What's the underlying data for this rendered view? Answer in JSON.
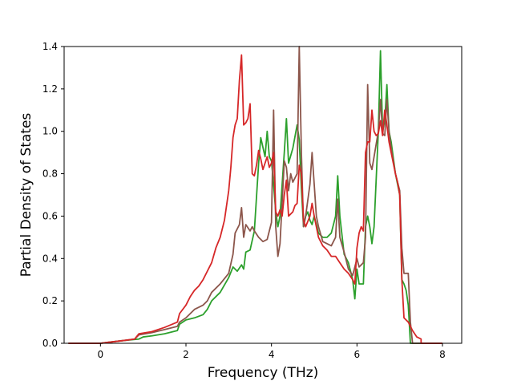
{
  "chart_data": {
    "type": "line",
    "title": "",
    "xlabel": "Frequency (THz)",
    "ylabel": "Partial Density of States",
    "xlim": [
      -0.85,
      8.45
    ],
    "ylim": [
      0.0,
      1.4
    ],
    "xticks": [
      0,
      2,
      4,
      6,
      8
    ],
    "yticks": [
      0.0,
      0.2,
      0.4,
      0.6,
      0.8,
      1.0,
      1.2,
      1.4
    ],
    "xtick_labels": [
      "0",
      "2",
      "4",
      "6",
      "8"
    ],
    "ytick_labels": [
      "0.0",
      "0.2",
      "0.4",
      "0.6",
      "0.8",
      "1.0",
      "1.2",
      "1.4"
    ],
    "grid": false,
    "legend": "none",
    "series": [
      {
        "color": "#2ca02c",
        "points": [
          [
            -0.75,
            0.0
          ],
          [
            0.0,
            0.0
          ],
          [
            0.2,
            0.005
          ],
          [
            0.5,
            0.012
          ],
          [
            0.8,
            0.018
          ],
          [
            0.9,
            0.02
          ],
          [
            1.0,
            0.03
          ],
          [
            1.2,
            0.035
          ],
          [
            1.5,
            0.045
          ],
          [
            1.8,
            0.06
          ],
          [
            1.85,
            0.09
          ],
          [
            2.0,
            0.11
          ],
          [
            2.2,
            0.12
          ],
          [
            2.4,
            0.135
          ],
          [
            2.5,
            0.16
          ],
          [
            2.6,
            0.2
          ],
          [
            2.8,
            0.24
          ],
          [
            3.0,
            0.31
          ],
          [
            3.1,
            0.36
          ],
          [
            3.2,
            0.34
          ],
          [
            3.3,
            0.37
          ],
          [
            3.35,
            0.35
          ],
          [
            3.4,
            0.43
          ],
          [
            3.5,
            0.44
          ],
          [
            3.6,
            0.53
          ],
          [
            3.7,
            0.85
          ],
          [
            3.75,
            0.97
          ],
          [
            3.85,
            0.88
          ],
          [
            3.9,
            1.0
          ],
          [
            3.95,
            0.88
          ],
          [
            4.0,
            0.86
          ],
          [
            4.05,
            0.75
          ],
          [
            4.1,
            0.62
          ],
          [
            4.15,
            0.55
          ],
          [
            4.2,
            0.6
          ],
          [
            4.25,
            0.75
          ],
          [
            4.3,
            0.9
          ],
          [
            4.35,
            1.06
          ],
          [
            4.4,
            0.85
          ],
          [
            4.5,
            0.92
          ],
          [
            4.6,
            1.03
          ],
          [
            4.65,
            0.96
          ],
          [
            4.7,
            0.73
          ],
          [
            4.75,
            0.55
          ],
          [
            4.8,
            0.6
          ],
          [
            4.85,
            0.62
          ],
          [
            4.9,
            0.58
          ],
          [
            4.95,
            0.56
          ],
          [
            5.0,
            0.6
          ],
          [
            5.1,
            0.52
          ],
          [
            5.2,
            0.5
          ],
          [
            5.3,
            0.5
          ],
          [
            5.4,
            0.52
          ],
          [
            5.5,
            0.6
          ],
          [
            5.55,
            0.79
          ],
          [
            5.6,
            0.6
          ],
          [
            5.7,
            0.42
          ],
          [
            5.8,
            0.38
          ],
          [
            5.9,
            0.3
          ],
          [
            5.95,
            0.21
          ],
          [
            6.0,
            0.35
          ],
          [
            6.05,
            0.28
          ],
          [
            6.15,
            0.28
          ],
          [
            6.2,
            0.55
          ],
          [
            6.25,
            0.6
          ],
          [
            6.3,
            0.55
          ],
          [
            6.35,
            0.47
          ],
          [
            6.4,
            0.55
          ],
          [
            6.5,
            1.0
          ],
          [
            6.55,
            1.38
          ],
          [
            6.6,
            1.0
          ],
          [
            6.65,
            1.05
          ],
          [
            6.7,
            1.22
          ],
          [
            6.75,
            1.0
          ],
          [
            6.8,
            0.95
          ],
          [
            6.9,
            0.8
          ],
          [
            7.0,
            0.7
          ],
          [
            7.05,
            0.3
          ],
          [
            7.1,
            0.28
          ],
          [
            7.15,
            0.25
          ],
          [
            7.2,
            0.18
          ],
          [
            7.25,
            0.0
          ],
          [
            8.0,
            0.0
          ]
        ]
      },
      {
        "color": "#8c564b",
        "points": [
          [
            -0.75,
            0.0
          ],
          [
            0.0,
            0.0
          ],
          [
            0.2,
            0.005
          ],
          [
            0.5,
            0.012
          ],
          [
            0.8,
            0.02
          ],
          [
            0.9,
            0.04
          ],
          [
            1.2,
            0.05
          ],
          [
            1.5,
            0.065
          ],
          [
            1.8,
            0.08
          ],
          [
            1.85,
            0.1
          ],
          [
            2.0,
            0.12
          ],
          [
            2.2,
            0.16
          ],
          [
            2.4,
            0.18
          ],
          [
            2.5,
            0.2
          ],
          [
            2.6,
            0.24
          ],
          [
            2.8,
            0.28
          ],
          [
            3.0,
            0.33
          ],
          [
            3.1,
            0.42
          ],
          [
            3.15,
            0.52
          ],
          [
            3.25,
            0.56
          ],
          [
            3.3,
            0.64
          ],
          [
            3.35,
            0.5
          ],
          [
            3.4,
            0.56
          ],
          [
            3.5,
            0.53
          ],
          [
            3.55,
            0.55
          ],
          [
            3.6,
            0.53
          ],
          [
            3.7,
            0.5
          ],
          [
            3.8,
            0.48
          ],
          [
            3.9,
            0.49
          ],
          [
            4.0,
            0.57
          ],
          [
            4.05,
            1.1
          ],
          [
            4.1,
            0.55
          ],
          [
            4.15,
            0.41
          ],
          [
            4.2,
            0.47
          ],
          [
            4.3,
            0.86
          ],
          [
            4.35,
            0.83
          ],
          [
            4.4,
            0.72
          ],
          [
            4.45,
            0.8
          ],
          [
            4.5,
            0.76
          ],
          [
            4.55,
            0.78
          ],
          [
            4.6,
            0.8
          ],
          [
            4.65,
            1.4
          ],
          [
            4.7,
            0.9
          ],
          [
            4.75,
            0.55
          ],
          [
            4.8,
            0.6
          ],
          [
            4.9,
            0.75
          ],
          [
            4.95,
            0.9
          ],
          [
            5.0,
            0.75
          ],
          [
            5.05,
            0.6
          ],
          [
            5.1,
            0.55
          ],
          [
            5.2,
            0.48
          ],
          [
            5.3,
            0.47
          ],
          [
            5.4,
            0.46
          ],
          [
            5.5,
            0.5
          ],
          [
            5.55,
            0.68
          ],
          [
            5.6,
            0.5
          ],
          [
            5.7,
            0.43
          ],
          [
            5.8,
            0.35
          ],
          [
            5.9,
            0.32
          ],
          [
            6.0,
            0.4
          ],
          [
            6.05,
            0.36
          ],
          [
            6.15,
            0.38
          ],
          [
            6.2,
            0.5
          ],
          [
            6.25,
            1.22
          ],
          [
            6.3,
            0.85
          ],
          [
            6.35,
            0.82
          ],
          [
            6.4,
            0.88
          ],
          [
            6.5,
            1.0
          ],
          [
            6.55,
            1.15
          ],
          [
            6.6,
            0.99
          ],
          [
            6.65,
            0.98
          ],
          [
            6.7,
            1.15
          ],
          [
            6.75,
            1.0
          ],
          [
            6.8,
            0.92
          ],
          [
            6.9,
            0.8
          ],
          [
            7.0,
            0.72
          ],
          [
            7.05,
            0.45
          ],
          [
            7.1,
            0.33
          ],
          [
            7.2,
            0.33
          ],
          [
            7.25,
            0.1
          ],
          [
            7.3,
            0.0
          ],
          [
            8.0,
            0.0
          ]
        ]
      },
      {
        "color": "#d62728",
        "points": [
          [
            -0.75,
            0.0
          ],
          [
            0.0,
            0.0
          ],
          [
            0.2,
            0.005
          ],
          [
            0.5,
            0.012
          ],
          [
            0.8,
            0.02
          ],
          [
            0.9,
            0.045
          ],
          [
            1.2,
            0.055
          ],
          [
            1.5,
            0.075
          ],
          [
            1.8,
            0.1
          ],
          [
            1.85,
            0.14
          ],
          [
            2.0,
            0.18
          ],
          [
            2.1,
            0.22
          ],
          [
            2.2,
            0.25
          ],
          [
            2.3,
            0.27
          ],
          [
            2.4,
            0.3
          ],
          [
            2.5,
            0.34
          ],
          [
            2.6,
            0.38
          ],
          [
            2.7,
            0.45
          ],
          [
            2.8,
            0.5
          ],
          [
            2.9,
            0.58
          ],
          [
            3.0,
            0.72
          ],
          [
            3.05,
            0.83
          ],
          [
            3.1,
            0.97
          ],
          [
            3.15,
            1.03
          ],
          [
            3.2,
            1.06
          ],
          [
            3.25,
            1.24
          ],
          [
            3.3,
            1.36
          ],
          [
            3.35,
            1.03
          ],
          [
            3.4,
            1.04
          ],
          [
            3.45,
            1.06
          ],
          [
            3.5,
            1.13
          ],
          [
            3.55,
            0.8
          ],
          [
            3.6,
            0.79
          ],
          [
            3.65,
            0.84
          ],
          [
            3.7,
            0.91
          ],
          [
            3.75,
            0.87
          ],
          [
            3.8,
            0.82
          ],
          [
            3.85,
            0.85
          ],
          [
            3.9,
            0.88
          ],
          [
            3.95,
            0.83
          ],
          [
            4.0,
            0.85
          ],
          [
            4.05,
            0.9
          ],
          [
            4.1,
            0.62
          ],
          [
            4.15,
            0.6
          ],
          [
            4.2,
            0.63
          ],
          [
            4.25,
            0.6
          ],
          [
            4.3,
            0.7
          ],
          [
            4.35,
            0.77
          ],
          [
            4.4,
            0.6
          ],
          [
            4.5,
            0.62
          ],
          [
            4.55,
            0.65
          ],
          [
            4.6,
            0.66
          ],
          [
            4.65,
            0.84
          ],
          [
            4.7,
            0.8
          ],
          [
            4.75,
            0.58
          ],
          [
            4.8,
            0.55
          ],
          [
            4.9,
            0.6
          ],
          [
            4.95,
            0.66
          ],
          [
            5.0,
            0.6
          ],
          [
            5.05,
            0.55
          ],
          [
            5.1,
            0.5
          ],
          [
            5.2,
            0.46
          ],
          [
            5.3,
            0.44
          ],
          [
            5.4,
            0.41
          ],
          [
            5.5,
            0.41
          ],
          [
            5.6,
            0.38
          ],
          [
            5.7,
            0.35
          ],
          [
            5.8,
            0.33
          ],
          [
            5.9,
            0.3
          ],
          [
            5.95,
            0.28
          ],
          [
            6.0,
            0.45
          ],
          [
            6.05,
            0.52
          ],
          [
            6.1,
            0.55
          ],
          [
            6.15,
            0.53
          ],
          [
            6.2,
            0.9
          ],
          [
            6.25,
            0.95
          ],
          [
            6.3,
            0.95
          ],
          [
            6.35,
            1.1
          ],
          [
            6.4,
            1.0
          ],
          [
            6.45,
            0.98
          ],
          [
            6.5,
            0.99
          ],
          [
            6.55,
            1.05
          ],
          [
            6.6,
            0.98
          ],
          [
            6.65,
            1.1
          ],
          [
            6.7,
            1.03
          ],
          [
            6.75,
            0.95
          ],
          [
            6.8,
            0.9
          ],
          [
            6.9,
            0.8
          ],
          [
            6.95,
            0.76
          ],
          [
            7.0,
            0.7
          ],
          [
            7.05,
            0.3
          ],
          [
            7.1,
            0.12
          ],
          [
            7.2,
            0.1
          ],
          [
            7.3,
            0.06
          ],
          [
            7.4,
            0.03
          ],
          [
            7.5,
            0.02
          ],
          [
            7.5,
            0.0
          ],
          [
            8.0,
            0.0
          ]
        ]
      }
    ]
  }
}
